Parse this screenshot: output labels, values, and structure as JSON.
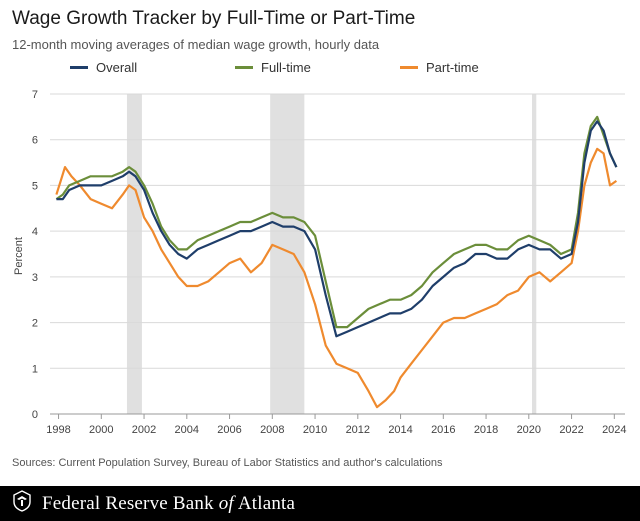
{
  "header": {
    "title": "Wage Growth Tracker by Full-Time or Part-Time",
    "subtitle": "12-month moving averages of median wage growth, hourly data"
  },
  "source": "Sources: Current Population Survey, Bureau of Labor Statistics and author's calculations",
  "footer": {
    "org_prefix": "Federal Reserve Bank ",
    "org_of": "of",
    "org_suffix": " Atlanta"
  },
  "colors": {
    "overall": "#1f3e6a",
    "fulltime": "#6b8e3a",
    "parttime": "#ef8a2e",
    "recession": "#e0e0e0"
  },
  "chart_data": {
    "type": "line",
    "ylabel": "Percent",
    "xlabel": "",
    "ylim": [
      0,
      7
    ],
    "xlim": [
      1997.6,
      2024.5
    ],
    "yticks": [
      0,
      1,
      2,
      3,
      4,
      5,
      6,
      7
    ],
    "xticks": [
      1998,
      2000,
      2002,
      2004,
      2006,
      2008,
      2010,
      2012,
      2014,
      2016,
      2018,
      2020,
      2022,
      2024
    ],
    "grid": "horizontal",
    "legend_position": "top",
    "recessions": [
      [
        2001.2,
        2001.9
      ],
      [
        2007.9,
        2009.5
      ],
      [
        2020.15,
        2020.35
      ]
    ],
    "series": [
      {
        "name": "Overall",
        "key": "overall",
        "x": [
          1997.9,
          1998.2,
          1998.5,
          1999.0,
          1999.5,
          2000.0,
          2000.5,
          2001.0,
          2001.3,
          2001.6,
          2002.0,
          2002.4,
          2002.8,
          2003.2,
          2003.6,
          2004.0,
          2004.5,
          2005.0,
          2005.5,
          2006.0,
          2006.5,
          2007.0,
          2007.5,
          2008.0,
          2008.5,
          2009.0,
          2009.5,
          2010.0,
          2010.5,
          2011.0,
          2011.5,
          2012.0,
          2012.5,
          2013.0,
          2013.5,
          2014.0,
          2014.5,
          2015.0,
          2015.5,
          2016.0,
          2016.5,
          2017.0,
          2017.5,
          2018.0,
          2018.5,
          2019.0,
          2019.5,
          2020.0,
          2020.5,
          2021.0,
          2021.5,
          2022.0,
          2022.3,
          2022.6,
          2022.9,
          2023.2,
          2023.5,
          2023.8,
          2024.1
        ],
        "y": [
          4.7,
          4.7,
          4.9,
          5.0,
          5.0,
          5.0,
          5.1,
          5.2,
          5.3,
          5.2,
          4.9,
          4.4,
          4.0,
          3.7,
          3.5,
          3.4,
          3.6,
          3.7,
          3.8,
          3.9,
          4.0,
          4.0,
          4.1,
          4.2,
          4.1,
          4.1,
          4.0,
          3.6,
          2.6,
          1.7,
          1.8,
          1.9,
          2.0,
          2.1,
          2.2,
          2.2,
          2.3,
          2.5,
          2.8,
          3.0,
          3.2,
          3.3,
          3.5,
          3.5,
          3.4,
          3.4,
          3.6,
          3.7,
          3.6,
          3.6,
          3.4,
          3.5,
          4.2,
          5.5,
          6.2,
          6.4,
          6.2,
          5.7,
          5.4
        ]
      },
      {
        "name": "Full-time",
        "key": "fulltime",
        "x": [
          1997.9,
          1998.2,
          1998.5,
          1999.0,
          1999.5,
          2000.0,
          2000.5,
          2001.0,
          2001.3,
          2001.6,
          2002.0,
          2002.4,
          2002.8,
          2003.2,
          2003.6,
          2004.0,
          2004.5,
          2005.0,
          2005.5,
          2006.0,
          2006.5,
          2007.0,
          2007.5,
          2008.0,
          2008.5,
          2009.0,
          2009.5,
          2010.0,
          2010.5,
          2011.0,
          2011.5,
          2012.0,
          2012.5,
          2013.0,
          2013.5,
          2014.0,
          2014.5,
          2015.0,
          2015.5,
          2016.0,
          2016.5,
          2017.0,
          2017.5,
          2018.0,
          2018.5,
          2019.0,
          2019.5,
          2020.0,
          2020.5,
          2021.0,
          2021.5,
          2022.0,
          2022.3,
          2022.6,
          2022.9,
          2023.2,
          2023.5,
          2023.8,
          2024.1
        ],
        "y": [
          4.7,
          4.8,
          5.0,
          5.1,
          5.2,
          5.2,
          5.2,
          5.3,
          5.4,
          5.3,
          5.0,
          4.6,
          4.1,
          3.8,
          3.6,
          3.6,
          3.8,
          3.9,
          4.0,
          4.1,
          4.2,
          4.2,
          4.3,
          4.4,
          4.3,
          4.3,
          4.2,
          3.9,
          2.9,
          1.9,
          1.9,
          2.1,
          2.3,
          2.4,
          2.5,
          2.5,
          2.6,
          2.8,
          3.1,
          3.3,
          3.5,
          3.6,
          3.7,
          3.7,
          3.6,
          3.6,
          3.8,
          3.9,
          3.8,
          3.7,
          3.5,
          3.6,
          4.4,
          5.7,
          6.3,
          6.5,
          6.1,
          5.7,
          5.4
        ]
      },
      {
        "name": "Part-time",
        "key": "parttime",
        "x": [
          1997.9,
          1998.1,
          1998.3,
          1998.6,
          1999.0,
          1999.5,
          2000.0,
          2000.5,
          2001.0,
          2001.3,
          2001.6,
          2002.0,
          2002.4,
          2002.8,
          2003.2,
          2003.6,
          2004.0,
          2004.5,
          2005.0,
          2005.5,
          2006.0,
          2006.5,
          2007.0,
          2007.5,
          2008.0,
          2008.5,
          2009.0,
          2009.5,
          2010.0,
          2010.5,
          2011.0,
          2011.5,
          2012.0,
          2012.5,
          2012.9,
          2013.3,
          2013.7,
          2014.0,
          2014.5,
          2015.0,
          2015.5,
          2016.0,
          2016.5,
          2017.0,
          2017.5,
          2018.0,
          2018.5,
          2019.0,
          2019.5,
          2020.0,
          2020.5,
          2021.0,
          2021.5,
          2022.0,
          2022.3,
          2022.6,
          2022.9,
          2023.2,
          2023.5,
          2023.8,
          2024.1
        ],
        "y": [
          4.8,
          5.1,
          5.4,
          5.2,
          5.0,
          4.7,
          4.6,
          4.5,
          4.8,
          5.0,
          4.9,
          4.3,
          4.0,
          3.6,
          3.3,
          3.0,
          2.8,
          2.8,
          2.9,
          3.1,
          3.3,
          3.4,
          3.1,
          3.3,
          3.7,
          3.6,
          3.5,
          3.1,
          2.4,
          1.5,
          1.1,
          1.0,
          0.9,
          0.5,
          0.15,
          0.3,
          0.5,
          0.8,
          1.1,
          1.4,
          1.7,
          2.0,
          2.1,
          2.1,
          2.2,
          2.3,
          2.4,
          2.6,
          2.7,
          3.0,
          3.1,
          2.9,
          3.1,
          3.3,
          4.0,
          5.0,
          5.5,
          5.8,
          5.7,
          5.0,
          5.1
        ]
      }
    ]
  }
}
